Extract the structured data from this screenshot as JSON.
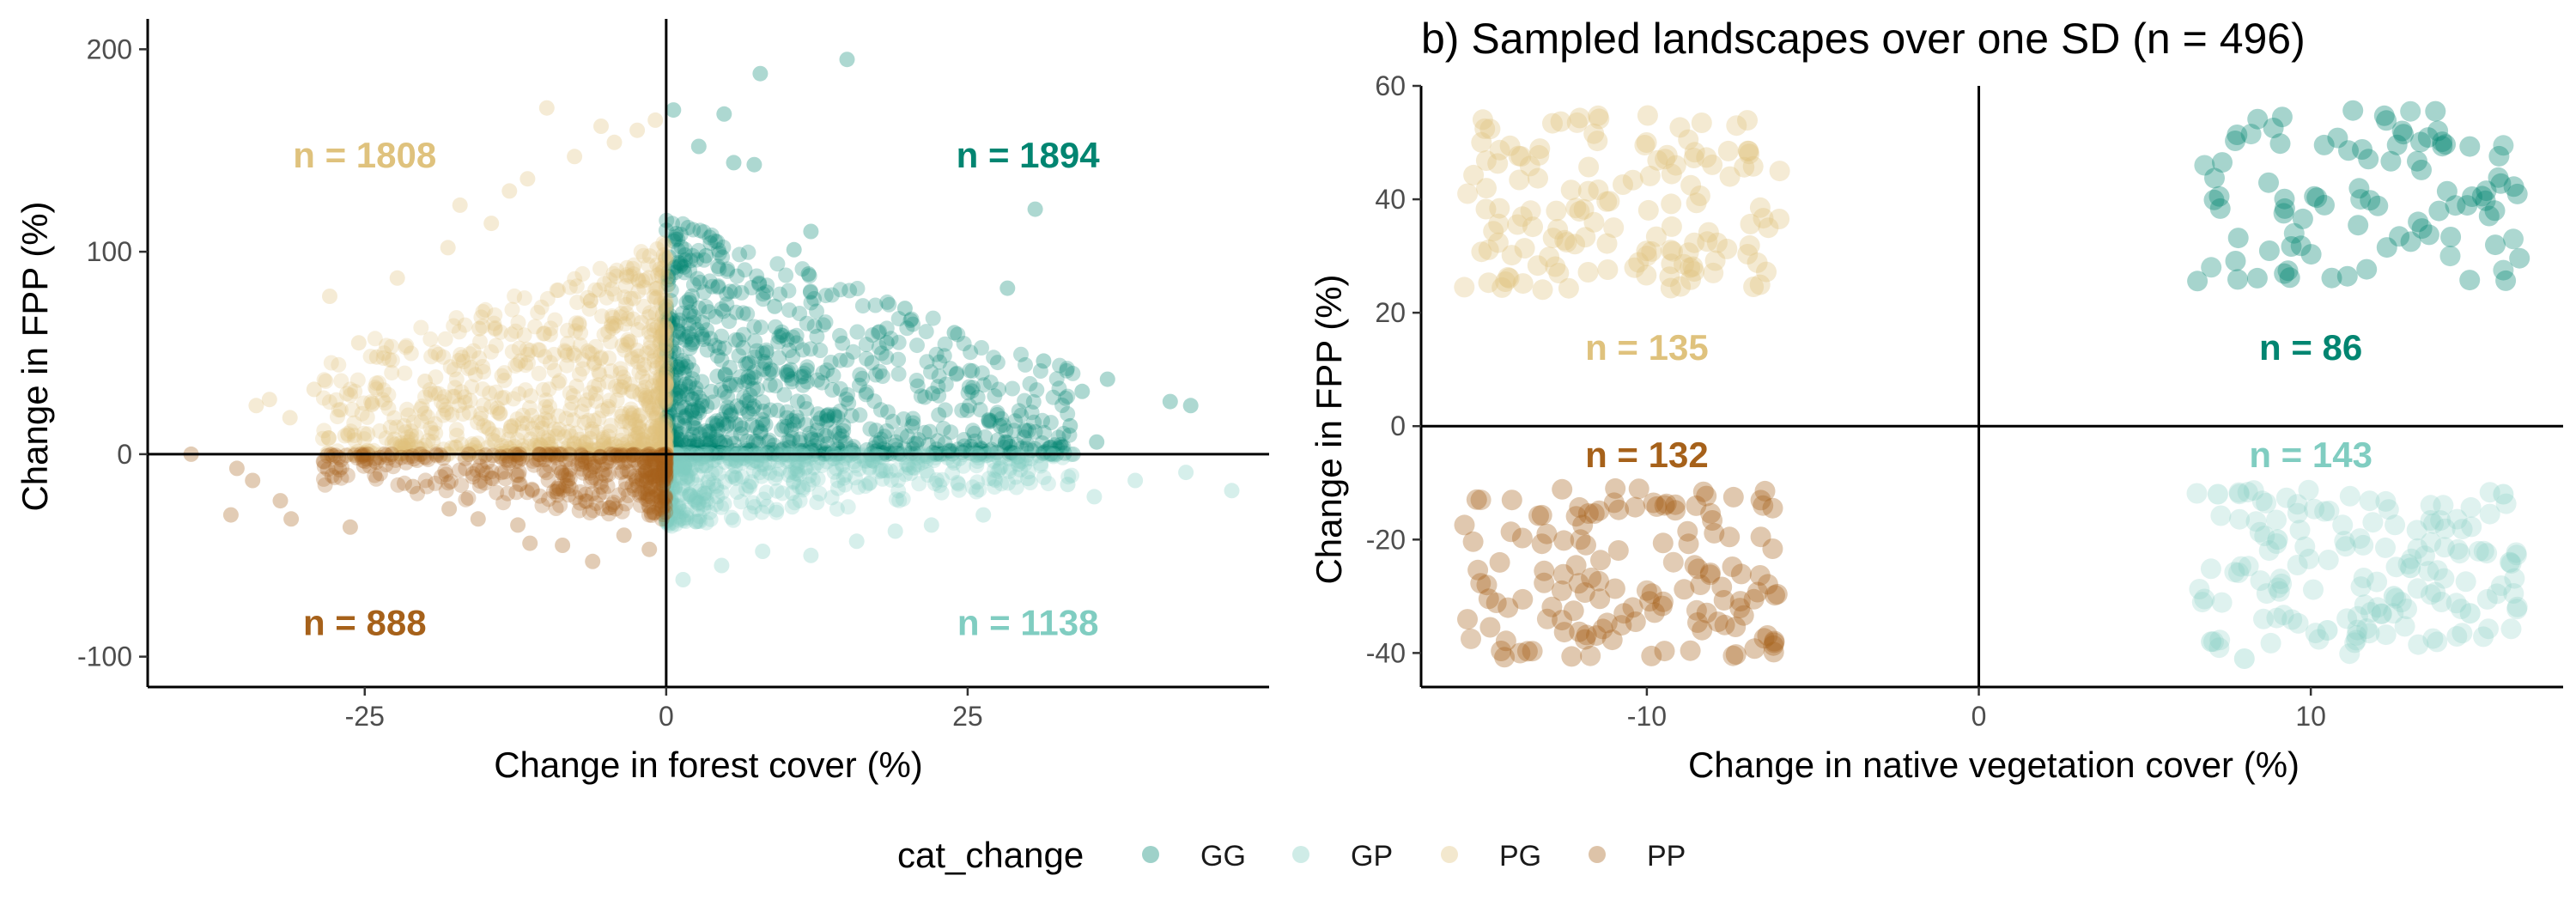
{
  "legend": {
    "title": "cat_change",
    "entries": [
      {
        "key": "GG",
        "label": "GG",
        "color": "#018571"
      },
      {
        "key": "GP",
        "label": "GP",
        "color": "#80cdc1"
      },
      {
        "key": "PG",
        "label": "PG",
        "color": "#dfc27d"
      },
      {
        "key": "PP",
        "label": "PP",
        "color": "#a6611a"
      }
    ]
  },
  "chart_data": [
    {
      "type": "scatter",
      "title": "",
      "xlabel": "Change in forest cover (%)",
      "ylabel": "Change in FPP (%)",
      "xlim": [
        -43,
        50
      ],
      "ylim": [
        -115,
        215
      ],
      "x_ticks": [
        -25,
        0,
        25
      ],
      "x_tick_labels": [
        "-25",
        "0",
        "25"
      ],
      "y_ticks": [
        -100,
        0,
        100,
        200
      ],
      "y_tick_labels": [
        "-100",
        "0",
        "100",
        "200"
      ],
      "grid": false,
      "reference_lines": {
        "x": 0,
        "y": 0
      },
      "quadrant_counts": [
        {
          "category": "PG",
          "text": "n = 1808",
          "x": -25,
          "y": 148
        },
        {
          "category": "GG",
          "text": "n = 1894",
          "x": 30,
          "y": 148
        },
        {
          "category": "PP",
          "text": "n = 888",
          "x": -25,
          "y": -83
        },
        {
          "category": "GP",
          "text": "n = 1138",
          "x": 30,
          "y": -83
        }
      ],
      "series": [
        {
          "name": "GG",
          "n": 1894,
          "x_range": [
            0,
            45
          ],
          "y_range": [
            0,
            195
          ],
          "points": [
            [
              15.0,
              195
            ],
            [
              7.8,
              188
            ],
            [
              4.8,
              168
            ],
            [
              0.6,
              170
            ],
            [
              2.7,
              152
            ],
            [
              5.6,
              144
            ],
            [
              7.3,
              143
            ],
            [
              30.6,
              121
            ],
            [
              12.0,
              110
            ],
            [
              10.6,
              101
            ],
            [
              3.3,
              98
            ],
            [
              1.2,
              93
            ],
            [
              11.8,
              89
            ],
            [
              28.3,
              82
            ],
            [
              19.8,
              72
            ],
            [
              23.9,
              60
            ],
            [
              31.3,
              46
            ],
            [
              36.6,
              37
            ],
            [
              41.8,
              26
            ],
            [
              43.5,
              24
            ],
            [
              34.5,
              31
            ],
            [
              27.7,
              14
            ],
            [
              18.3,
              55
            ],
            [
              9.0,
              73
            ],
            [
              3.0,
              65
            ],
            [
              22.1,
              30
            ],
            [
              33.5,
              14
            ],
            [
              35.7,
              6
            ]
          ]
        },
        {
          "name": "GP",
          "n": 1138,
          "x_range": [
            0,
            45
          ],
          "y_range": [
            -62,
            0
          ],
          "points": [
            [
              46.9,
              -18
            ],
            [
              43.1,
              -9
            ],
            [
              35.5,
              -21
            ],
            [
              30.0,
              -12
            ],
            [
              26.3,
              -30
            ],
            [
              22.0,
              -35
            ],
            [
              19.0,
              -38
            ],
            [
              15.8,
              -43
            ],
            [
              12.0,
              -50
            ],
            [
              8.0,
              -48
            ],
            [
              4.6,
              -55
            ],
            [
              1.4,
              -62
            ],
            [
              29.2,
              -5
            ],
            [
              33.3,
              -15
            ],
            [
              38.9,
              -13
            ]
          ]
        },
        {
          "name": "PG",
          "n": 1808,
          "x_range": [
            -38,
            0
          ],
          "y_range": [
            0,
            175
          ],
          "points": [
            [
              -9.9,
              171
            ],
            [
              -5.4,
              162
            ],
            [
              -2.4,
              160
            ],
            [
              -0.9,
              165
            ],
            [
              -4.3,
              154
            ],
            [
              -7.6,
              147
            ],
            [
              -11.5,
              136
            ],
            [
              -13.0,
              130
            ],
            [
              -17.1,
              123
            ],
            [
              -14.5,
              114
            ],
            [
              -18.1,
              102
            ],
            [
              -22.3,
              87
            ],
            [
              -27.9,
              78
            ],
            [
              -25.5,
              55
            ],
            [
              -24.0,
              48
            ],
            [
              -29.2,
              32
            ],
            [
              -32.9,
              27
            ],
            [
              -31.2,
              18
            ],
            [
              -34.0,
              24
            ],
            [
              -28.0,
              8
            ],
            [
              -20.0,
              36
            ],
            [
              -15.5,
              62
            ]
          ]
        },
        {
          "name": "PP",
          "n": 888,
          "x_range": [
            -38,
            0
          ],
          "y_range": [
            -55,
            0
          ],
          "points": [
            [
              -39.4,
              0
            ],
            [
              -35.6,
              -7
            ],
            [
              -34.3,
              -13
            ],
            [
              -36.1,
              -30
            ],
            [
              -32.0,
              -23
            ],
            [
              -31.1,
              -32
            ],
            [
              -26.2,
              -36
            ],
            [
              -21.0,
              -16
            ],
            [
              -18.0,
              -27
            ],
            [
              -15.6,
              -32
            ],
            [
              -12.3,
              -35
            ],
            [
              -11.3,
              -44
            ],
            [
              -8.6,
              -45
            ],
            [
              -6.1,
              -53
            ],
            [
              -3.5,
              -40
            ],
            [
              -1.4,
              -47
            ]
          ]
        }
      ]
    },
    {
      "type": "scatter",
      "title": "b) Sampled landscapes over one SD (n = 496)",
      "xlabel": "Change in native vegetation cover (%)",
      "ylabel": "Change in FPP (%)",
      "xlim": [
        -16.8,
        17.6
      ],
      "ylim": [
        -46,
        60
      ],
      "x_ticks": [
        -10,
        0,
        10
      ],
      "x_tick_labels": [
        "-10",
        "0",
        "10"
      ],
      "y_ticks": [
        -40,
        -20,
        0,
        20,
        40,
        60
      ],
      "y_tick_labels": [
        "-40",
        "-20",
        "0",
        "20",
        "40",
        "60"
      ],
      "grid": false,
      "reference_lines": {
        "x": 0,
        "y": 0
      },
      "quadrant_counts": [
        {
          "category": "PG",
          "text": "n = 135",
          "x": -10,
          "y": 14
        },
        {
          "category": "GG",
          "text": "n = 86",
          "x": 10,
          "y": 14
        },
        {
          "category": "PP",
          "text": "n = 132",
          "x": -10,
          "y": -5
        },
        {
          "category": "GP",
          "text": "n = 143",
          "x": 10,
          "y": -5
        }
      ],
      "series": [
        {
          "name": "PG",
          "n": 135,
          "x_range": [
            -15.5,
            -5.9
          ],
          "y_range": [
            24,
            55
          ],
          "points": [
            [
              -12.1,
              53.5
            ],
            [
              -7.3,
              53.0
            ],
            [
              -15.4,
              41.0
            ],
            [
              -13.5,
              38.0
            ],
            [
              -10.0,
              30.0
            ],
            [
              -15.5,
              24.5
            ],
            [
              -6.0,
              45.0
            ],
            [
              -11.0,
              35.0
            ],
            [
              -8.0,
              27.0
            ]
          ]
        },
        {
          "name": "GG",
          "n": 86,
          "x_range": [
            6.5,
            16.3
          ],
          "y_range": [
            25,
            56
          ],
          "points": [
            [
              13.0,
              55.5
            ],
            [
              6.8,
              46.0
            ],
            [
              9.5,
              34.0
            ],
            [
              7.0,
              28.0
            ],
            [
              11.5,
              40.0
            ],
            [
              15.8,
              49.5
            ],
            [
              15.8,
              27.5
            ],
            [
              16.1,
              33.0
            ],
            [
              14.2,
              30.0
            ],
            [
              8.2,
              51.5
            ]
          ]
        },
        {
          "name": "GP",
          "n": 143,
          "x_range": [
            6.5,
            16.3
          ],
          "y_range": [
            -41,
            -11
          ],
          "points": [
            [
              7.0,
              -38.0
            ],
            [
              8.0,
              -41.0
            ],
            [
              10.5,
              -36.0
            ],
            [
              12.5,
              -30.0
            ],
            [
              14.8,
              -33.0
            ],
            [
              15.8,
              -12.0
            ],
            [
              9.0,
              -20.0
            ],
            [
              7.2,
              -12.0
            ],
            [
              13.0,
              -25.0
            ],
            [
              16.0,
              -24.0
            ]
          ]
        },
        {
          "name": "PP",
          "n": 132,
          "x_range": [
            -15.5,
            -5.9
          ],
          "y_range": [
            -41,
            -11
          ],
          "points": [
            [
              -15.3,
              -37.5
            ],
            [
              -11.7,
              -40.5
            ],
            [
              -7.4,
              -40.5
            ],
            [
              -13.0,
              -34.0
            ],
            [
              -10.0,
              -29.0
            ],
            [
              -8.5,
              -32.5
            ],
            [
              -15.0,
              -13.0
            ],
            [
              -12.0,
              -20.0
            ],
            [
              -6.5,
              -14.0
            ],
            [
              -9.2,
              -24.0
            ]
          ]
        }
      ]
    }
  ]
}
